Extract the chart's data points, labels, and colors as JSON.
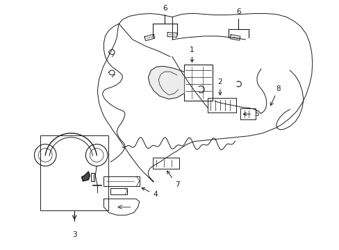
{
  "background_color": "#ffffff",
  "line_color": "#1a1a1a",
  "figure_width": 4.89,
  "figure_height": 3.6,
  "dpi": 100
}
